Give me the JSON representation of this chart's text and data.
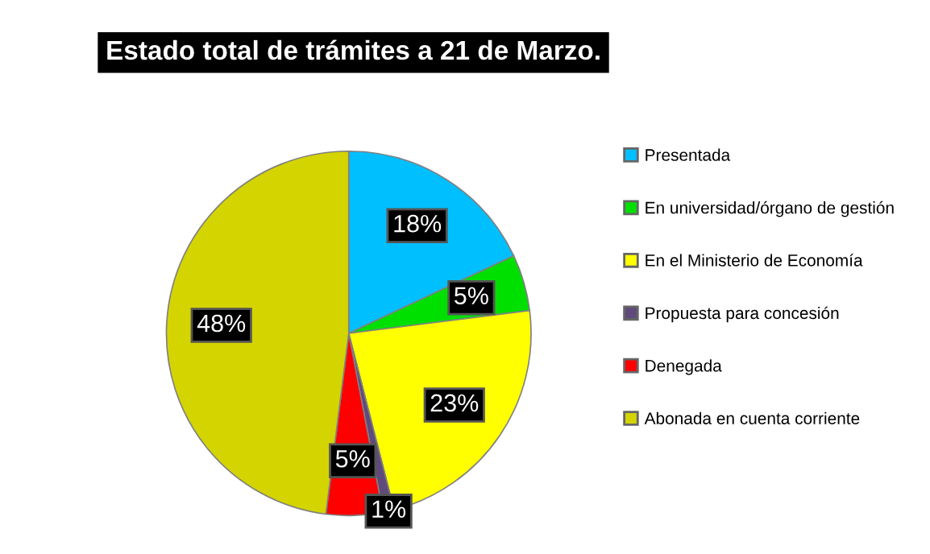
{
  "chart_data": {
    "type": "pie",
    "title": "Estado total de trámites a 21 de Marzo.",
    "categories": [
      "Presentada",
      "En universidad/órgano de gestión",
      "En el Ministerio de Economía",
      "Propuesta para concesión",
      "Denegada",
      "Abonada en cuenta corriente"
    ],
    "values": [
      18,
      5,
      23,
      1,
      5,
      48
    ],
    "colors": [
      "#00bfff",
      "#00e000",
      "#ffff00",
      "#604a7b",
      "#ff0000",
      "#d4d400"
    ],
    "value_labels": [
      "18%",
      "5%",
      "23%",
      "1%",
      "5%",
      "48%"
    ],
    "legend": "right"
  }
}
